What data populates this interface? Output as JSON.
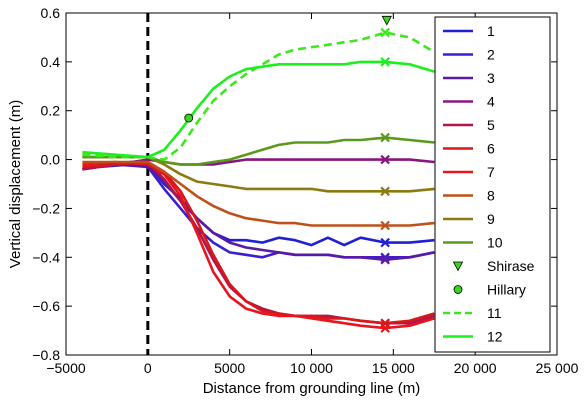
{
  "chart_data": {
    "type": "line",
    "title": "",
    "xlabel": "Distance from grounding line (m)",
    "ylabel": "Vertical displacement (m)",
    "xlim": [
      -5000,
      25000
    ],
    "ylim": [
      -0.8,
      0.6
    ],
    "xticks": [
      -5000,
      0,
      5000,
      10000,
      15000,
      20000,
      25000
    ],
    "xtick_labels": [
      "−5000",
      "0",
      "5000",
      "10 000",
      "15 000",
      "20 000",
      "25 000"
    ],
    "yticks": [
      -0.8,
      -0.6,
      -0.4,
      -0.2,
      0.0,
      0.2,
      0.4,
      0.6
    ],
    "ytick_labels": [
      "−0.8",
      "−0.6",
      "−0.4",
      "−0.2",
      "0.0",
      "0.2",
      "0.4",
      "0.6"
    ],
    "grid": false,
    "legend_position": "right",
    "grounding_line_x": 0,
    "marker_x": 14500,
    "series": [
      {
        "name": "1",
        "color": "#1f1fd6",
        "style": "solid",
        "x": [
          -3000,
          -1000,
          0,
          1000,
          2000,
          3000,
          4000,
          5000,
          6000,
          7000,
          8000,
          9000,
          10000,
          11000,
          12000,
          13000,
          14500,
          16000,
          17500
        ],
        "y": [
          -0.02,
          -0.01,
          -0.02,
          -0.1,
          -0.16,
          -0.24,
          -0.3,
          -0.33,
          -0.33,
          -0.34,
          -0.32,
          -0.33,
          -0.35,
          -0.32,
          -0.35,
          -0.32,
          -0.34,
          -0.34,
          -0.33
        ]
      },
      {
        "name": "2",
        "color": "#3a1fd0",
        "style": "solid",
        "x": [
          -3000,
          -1000,
          0,
          1000,
          2000,
          3000,
          4000,
          5000,
          6000,
          7000,
          8000,
          9000,
          10000,
          11000,
          12000,
          13000,
          14500,
          16000,
          17500
        ],
        "y": [
          -0.03,
          -0.02,
          -0.03,
          -0.12,
          -0.2,
          -0.28,
          -0.34,
          -0.38,
          -0.39,
          -0.4,
          -0.38,
          -0.39,
          -0.39,
          -0.39,
          -0.4,
          -0.4,
          -0.4,
          -0.4,
          -0.38
        ]
      },
      {
        "name": "3",
        "color": "#5a1aa8",
        "style": "solid",
        "x": [
          -4000,
          -2000,
          0,
          1000,
          2000,
          3000,
          4000,
          5000,
          6000,
          7000,
          8000,
          9000,
          10000,
          11000,
          12000,
          13000,
          14500,
          16000,
          17500
        ],
        "y": [
          -0.04,
          -0.02,
          -0.03,
          -0.09,
          -0.17,
          -0.24,
          -0.3,
          -0.34,
          -0.36,
          -0.37,
          -0.38,
          -0.39,
          -0.39,
          -0.39,
          -0.4,
          -0.4,
          -0.41,
          -0.4,
          -0.38
        ]
      },
      {
        "name": "4",
        "color": "#8a1580",
        "style": "solid",
        "x": [
          -4000,
          -2000,
          0,
          1000,
          2000,
          3000,
          4000,
          5000,
          6000,
          7000,
          8000,
          9000,
          10000,
          11000,
          12000,
          13000,
          14500,
          16000,
          17500
        ],
        "y": [
          -0.04,
          -0.02,
          0.0,
          -0.01,
          -0.02,
          -0.02,
          -0.02,
          -0.01,
          0.0,
          0.0,
          0.0,
          0.0,
          0.0,
          0.0,
          0.0,
          0.0,
          0.0,
          0.0,
          -0.01
        ]
      },
      {
        "name": "5",
        "color": "#b0144a",
        "style": "solid",
        "x": [
          -4000,
          -2000,
          0,
          1000,
          2000,
          3000,
          4000,
          5000,
          6000,
          7000,
          8000,
          9000,
          10000,
          11000,
          12000,
          13000,
          14500,
          16000,
          17500
        ],
        "y": [
          -0.04,
          -0.02,
          -0.01,
          -0.08,
          -0.17,
          -0.28,
          -0.41,
          -0.52,
          -0.58,
          -0.61,
          -0.63,
          -0.64,
          -0.64,
          -0.64,
          -0.65,
          -0.66,
          -0.67,
          -0.67,
          -0.64
        ]
      },
      {
        "name": "6",
        "color": "#d81818",
        "style": "solid",
        "x": [
          -4000,
          -2000,
          0,
          1000,
          2000,
          3000,
          4000,
          5000,
          6000,
          7000,
          8000,
          9000,
          10000,
          11000,
          12000,
          13000,
          14500,
          16000,
          17500
        ],
        "y": [
          -0.03,
          -0.02,
          -0.01,
          -0.05,
          -0.13,
          -0.25,
          -0.39,
          -0.51,
          -0.58,
          -0.62,
          -0.63,
          -0.64,
          -0.64,
          -0.65,
          -0.65,
          -0.66,
          -0.67,
          -0.66,
          -0.63
        ]
      },
      {
        "name": "7",
        "color": "#e8141e",
        "style": "solid",
        "x": [
          -4000,
          -2000,
          0,
          1000,
          2000,
          3000,
          4000,
          5000,
          6000,
          7000,
          8000,
          9000,
          10000,
          11000,
          12000,
          13000,
          14500,
          16000,
          17500
        ],
        "y": [
          -0.02,
          -0.01,
          -0.02,
          -0.06,
          -0.15,
          -0.3,
          -0.46,
          -0.56,
          -0.61,
          -0.63,
          -0.64,
          -0.64,
          -0.65,
          -0.66,
          -0.67,
          -0.68,
          -0.69,
          -0.68,
          -0.65
        ]
      },
      {
        "name": "8",
        "color": "#c0501a",
        "style": "solid",
        "x": [
          -4000,
          -2000,
          0,
          1000,
          2000,
          3000,
          4000,
          5000,
          6000,
          7000,
          8000,
          9000,
          10000,
          11000,
          12000,
          13000,
          14500,
          16000,
          17500
        ],
        "y": [
          -0.01,
          -0.01,
          -0.01,
          -0.05,
          -0.1,
          -0.15,
          -0.19,
          -0.22,
          -0.24,
          -0.25,
          -0.26,
          -0.26,
          -0.27,
          -0.27,
          -0.27,
          -0.27,
          -0.27,
          -0.27,
          -0.26
        ]
      },
      {
        "name": "9",
        "color": "#8a7a10",
        "style": "solid",
        "x": [
          -4000,
          -2000,
          0,
          1000,
          2000,
          3000,
          4000,
          5000,
          6000,
          7000,
          8000,
          9000,
          10000,
          11000,
          12000,
          13000,
          14500,
          16000,
          17500
        ],
        "y": [
          0.01,
          0.01,
          0.01,
          -0.02,
          -0.06,
          -0.09,
          -0.1,
          -0.11,
          -0.12,
          -0.12,
          -0.12,
          -0.12,
          -0.12,
          -0.13,
          -0.13,
          -0.13,
          -0.13,
          -0.13,
          -0.12
        ]
      },
      {
        "name": "10",
        "color": "#5a9a1a",
        "style": "solid",
        "x": [
          -4000,
          -2000,
          0,
          1000,
          2000,
          3000,
          4000,
          5000,
          6000,
          7000,
          8000,
          9000,
          10000,
          11000,
          12000,
          13000,
          14500,
          16000,
          17500
        ],
        "y": [
          0.01,
          0.01,
          0.01,
          -0.01,
          -0.02,
          -0.02,
          -0.01,
          0.0,
          0.02,
          0.04,
          0.06,
          0.07,
          0.07,
          0.07,
          0.08,
          0.08,
          0.09,
          0.08,
          0.07
        ]
      },
      {
        "name": "11",
        "color": "#3de81a",
        "style": "dashed",
        "x": [
          -4000,
          -2000,
          0,
          1000,
          2000,
          3000,
          4000,
          5000,
          6000,
          7000,
          8000,
          9000,
          10000,
          11000,
          12000,
          13000,
          14500,
          16000,
          17500
        ],
        "y": [
          0.02,
          0.01,
          0.01,
          0.0,
          0.05,
          0.15,
          0.24,
          0.3,
          0.35,
          0.39,
          0.43,
          0.45,
          0.46,
          0.47,
          0.48,
          0.49,
          0.52,
          0.5,
          0.44
        ]
      },
      {
        "name": "12",
        "color": "#1cf01c",
        "style": "solid",
        "x": [
          -4000,
          -2000,
          0,
          1000,
          2000,
          3000,
          4000,
          5000,
          6000,
          7000,
          8000,
          9000,
          10000,
          11000,
          12000,
          13000,
          14500,
          16000,
          17500
        ],
        "y": [
          0.03,
          0.02,
          0.01,
          0.04,
          0.12,
          0.21,
          0.29,
          0.34,
          0.37,
          0.38,
          0.39,
          0.39,
          0.39,
          0.39,
          0.39,
          0.4,
          0.4,
          0.39,
          0.36
        ]
      }
    ],
    "points": [
      {
        "name": "Shirase",
        "marker": "triangle-down",
        "color": "#39d61a",
        "x": 14600,
        "y": 0.57
      },
      {
        "name": "Hillary",
        "marker": "circle",
        "color": "#39d61a",
        "x": 2500,
        "y": 0.17
      }
    ],
    "legend": [
      "1",
      "2",
      "3",
      "4",
      "5",
      "6",
      "7",
      "8",
      "9",
      "10",
      "Shirase",
      "Hillary",
      "11",
      "12"
    ]
  }
}
